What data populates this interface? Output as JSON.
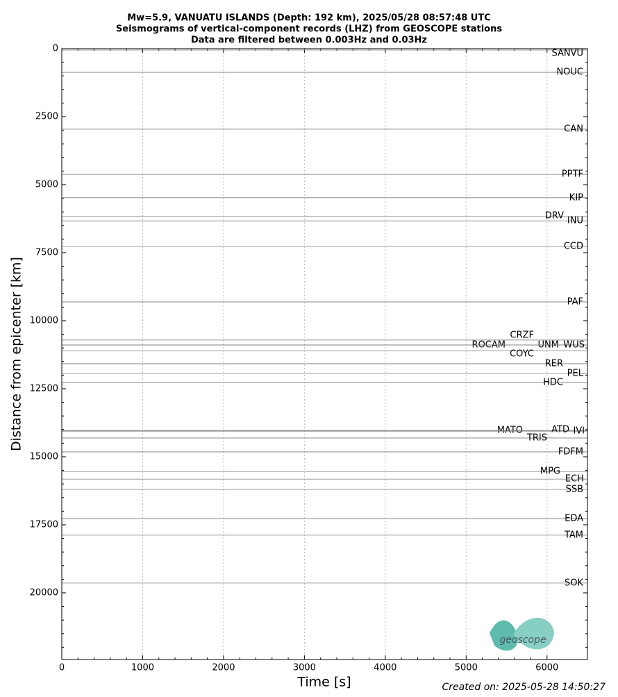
{
  "chart_data": {
    "type": "record_section",
    "title": [
      "Mw=5.9, VANUATU ISLANDS (Depth: 192 km), 2025/05/28 08:57:48 UTC",
      "Seismograms of vertical-component records (LHZ) from GEOSCOPE stations",
      "Data are filtered between 0.003Hz and 0.03Hz"
    ],
    "xlabel": "Time [s]",
    "ylabel": "Distance from epicenter [km]",
    "xlim": [
      0,
      6500
    ],
    "ylim": [
      22450,
      0
    ],
    "xticks": [
      0,
      1000,
      2000,
      3000,
      4000,
      5000,
      6000
    ],
    "yticks": [
      0,
      2500,
      5000,
      7500,
      10000,
      12500,
      15000,
      17500,
      20000
    ],
    "grid": true,
    "trace_color": "#7a7a7a",
    "stations": [
      "SANVU",
      "NOUC",
      "CAN",
      "PPTF",
      "KIP",
      "DRV",
      "INU",
      "CCD",
      "PAF",
      "CRZF",
      "ROCAM",
      "UNM",
      "WUS",
      "COYC",
      "RER",
      "PEL",
      "HDC",
      "MATO",
      "ATD",
      "IVI",
      "TRIS",
      "FDFM",
      "MPG",
      "ECH",
      "SSB",
      "EDA",
      "TAM",
      "SOK"
    ],
    "distances": [
      50,
      870,
      2960,
      4620,
      5480,
      6170,
      6330,
      7270,
      9310,
      10710,
      10890,
      10890,
      10890,
      11100,
      11580,
      11940,
      12270,
      14030,
      14030,
      14060,
      14310,
      14820,
      15540,
      15820,
      16200,
      17270,
      17880,
      19640
    ],
    "created": "Created on: 2025-05-28 14:50:27",
    "logo": "geoscope"
  }
}
